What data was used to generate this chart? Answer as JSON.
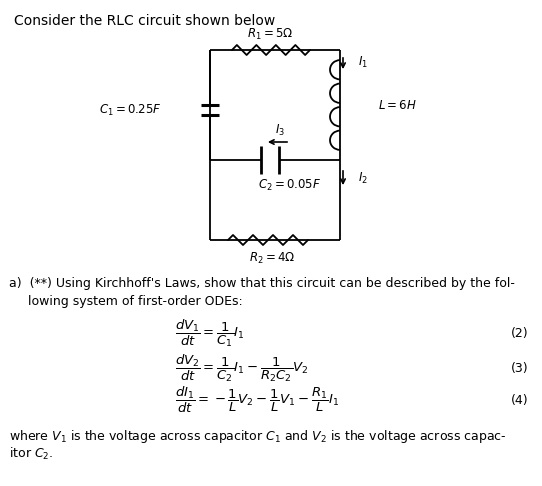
{
  "bg_color": "#ffffff",
  "title_text": "Consider the RLC circuit shown below",
  "fig_width": 5.42,
  "fig_height": 4.86,
  "dpi": 100,
  "font_color": "#000000"
}
